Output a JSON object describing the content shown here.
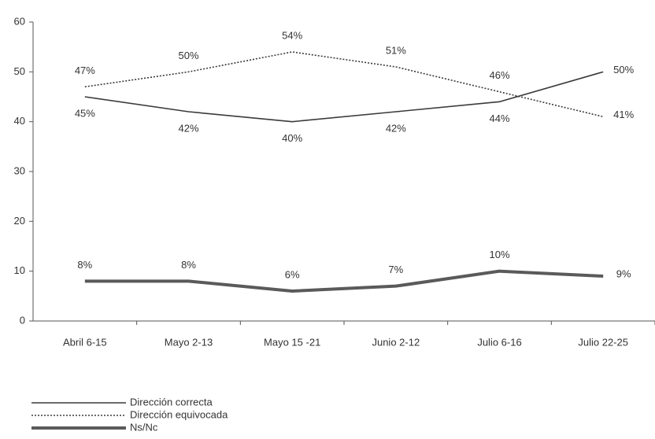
{
  "chart_data": {
    "type": "line",
    "categories": [
      "Abril 6-15",
      "Mayo 2-13",
      "Mayo 15 -21",
      "Junio 2-12",
      "Julio  6-16",
      "Julio 22-25"
    ],
    "ylim": [
      0,
      60
    ],
    "yticks": [
      0,
      10,
      20,
      30,
      40,
      50,
      60
    ],
    "legend": "bottom-left",
    "series": [
      {
        "name": "Dirección correcta",
        "color": "#3a3a3a",
        "style": "solid",
        "label_side": "below",
        "values": [
          45,
          42,
          40,
          42,
          44,
          50
        ],
        "value_labels": [
          "45%",
          "42%",
          "40%",
          "42%",
          "44%",
          "50%"
        ]
      },
      {
        "name": "Dirección equivocada",
        "color": "#3a3a3a",
        "style": "dotted",
        "label_side": "above",
        "values": [
          47,
          50,
          54,
          51,
          46,
          41
        ],
        "value_labels": [
          "47%",
          "50%",
          "54%",
          "51%",
          "46%",
          "41%"
        ]
      },
      {
        "name": "Ns/Nc",
        "color": "#5a5a5a",
        "style": "thick",
        "label_side": "above",
        "values": [
          8,
          8,
          6,
          7,
          10,
          9
        ],
        "value_labels": [
          "8%",
          "8%",
          "6%",
          "7%",
          "10%",
          "9%"
        ]
      }
    ]
  }
}
